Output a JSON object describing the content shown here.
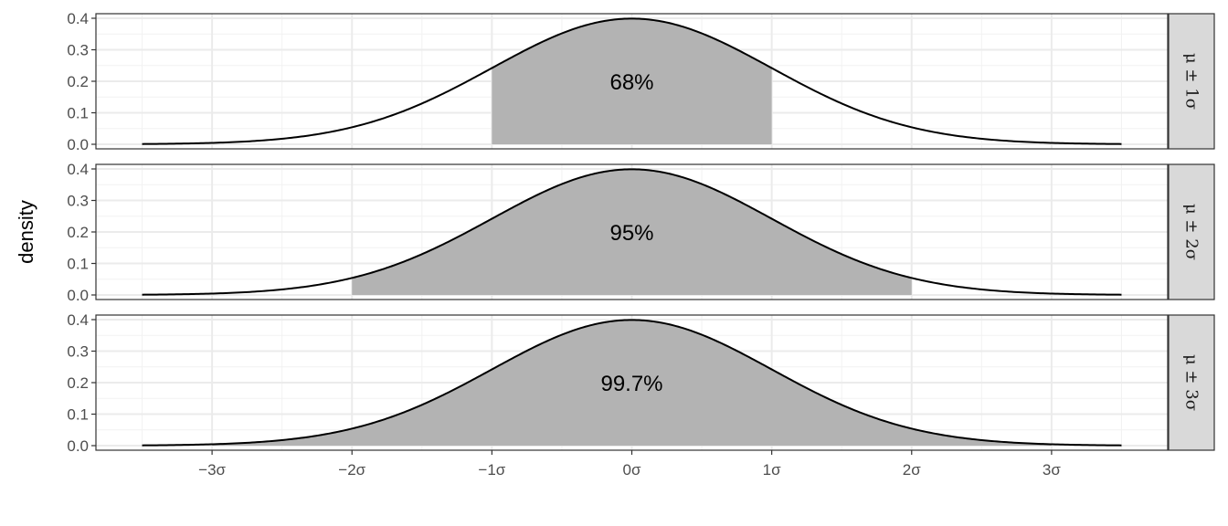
{
  "chart_data": {
    "type": "area",
    "ylabel": "density",
    "xlabel": "",
    "xlim": [
      -3.5,
      3.5
    ],
    "ylim": [
      0,
      0.4
    ],
    "x_ticks": [
      -3,
      -2,
      -1,
      0,
      1,
      2,
      3
    ],
    "x_tick_labels": [
      "−3σ",
      "−2σ",
      "−1σ",
      "0σ",
      "1σ",
      "2σ",
      "3σ"
    ],
    "y_ticks": [
      0,
      0.1,
      0.2,
      0.3,
      0.4
    ],
    "y_tick_labels": [
      "0.0",
      "0.1",
      "0.2",
      "0.3",
      "0.4"
    ],
    "grid": true,
    "curve": "standard normal density",
    "fill_color": "#b3b3b3",
    "panels": [
      {
        "strip": "μ ± 1σ",
        "shade_from": -1,
        "shade_to": 1,
        "label": "68%"
      },
      {
        "strip": "μ ± 2σ",
        "shade_from": -2,
        "shade_to": 2,
        "label": "95%"
      },
      {
        "strip": "μ ± 3σ",
        "shade_from": -3,
        "shade_to": 3,
        "label": "99.7%"
      }
    ]
  }
}
